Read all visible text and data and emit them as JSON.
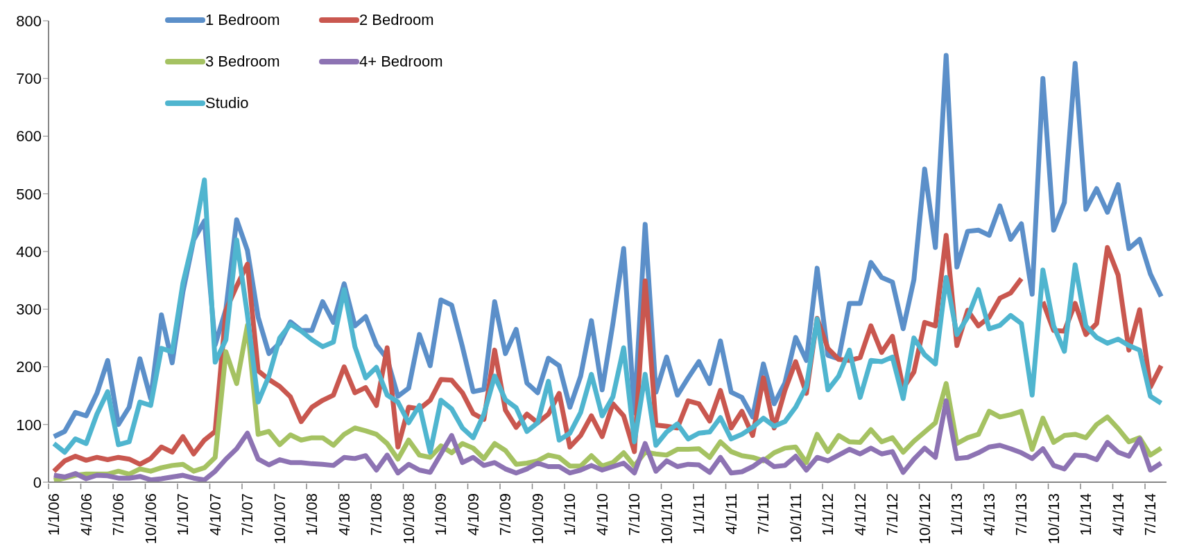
{
  "chart_data": {
    "type": "line",
    "categories": [
      "1/1/06",
      null,
      null,
      "4/1/06",
      null,
      null,
      "7/1/06",
      null,
      null,
      "10/1/06",
      null,
      null,
      "1/1/07",
      null,
      null,
      "4/1/07",
      null,
      null,
      "7/1/07",
      null,
      null,
      "10/1/07",
      null,
      null,
      "1/1/08",
      null,
      null,
      "4/1/08",
      null,
      null,
      "7/1/08",
      null,
      null,
      "10/1/08",
      null,
      null,
      "1/1/09",
      null,
      null,
      "4/1/09",
      null,
      null,
      "7/1/09",
      null,
      null,
      "10/1/09",
      null,
      null,
      "1/1/10",
      null,
      null,
      "4/1/10",
      null,
      null,
      "7/1/10",
      null,
      null,
      "10/1/10",
      null,
      null,
      "1/1/11",
      null,
      null,
      "4/1/11",
      null,
      null,
      "7/1/11",
      null,
      null,
      "10/1/11",
      null,
      null,
      "1/1/12",
      null,
      null,
      "4/1/12",
      null,
      null,
      "7/1/12",
      null,
      null,
      "10/1/12",
      null,
      null,
      "1/1/13",
      null,
      null,
      "4/1/13",
      null,
      null,
      "7/1/13",
      null,
      null,
      "10/1/13",
      null,
      null,
      "1/1/14",
      null,
      null,
      "4/1/14",
      null,
      null,
      "7/1/14",
      null
    ],
    "series": [
      {
        "name": "1 Bedroom",
        "color": "#5b8fc9",
        "values": [
          79,
          88,
          121,
          115,
          154,
          211,
          100,
          130,
          214,
          145,
          290,
          207,
          330,
          420,
          453,
          238,
          300,
          455,
          402,
          286,
          223,
          241,
          278,
          263,
          263,
          313,
          277,
          344,
          271,
          287,
          238,
          214,
          149,
          163,
          256,
          202,
          316,
          307,
          235,
          157,
          161,
          313,
          223,
          265,
          172,
          155,
          215,
          202,
          130,
          184,
          280,
          160,
          275,
          405,
          120,
          447,
          156,
          217,
          151,
          181,
          209,
          171,
          245,
          156,
          147,
          113,
          205,
          136,
          172,
          251,
          211,
          371,
          220,
          214,
          310,
          310,
          381,
          355,
          347,
          266,
          351,
          543,
          407,
          740,
          373,
          435,
          437,
          428,
          479,
          421,
          448,
          326,
          700,
          437,
          485,
          726,
          473,
          509,
          468,
          516,
          405,
          421,
          361,
          322
        ]
      },
      {
        "name": "2 Bedroom",
        "color": "#c9574f",
        "values": [
          19,
          37,
          45,
          38,
          43,
          39,
          43,
          40,
          31,
          41,
          61,
          52,
          79,
          49,
          73,
          88,
          298,
          340,
          378,
          193,
          178,
          166,
          148,
          105,
          130,
          142,
          151,
          200,
          155,
          164,
          133,
          233,
          61,
          130,
          127,
          142,
          178,
          177,
          155,
          119,
          109,
          229,
          125,
          95,
          118,
          103,
          118,
          154,
          61,
          81,
          115,
          79,
          136,
          115,
          53,
          349,
          99,
          97,
          94,
          141,
          136,
          106,
          159,
          94,
          123,
          81,
          181,
          94,
          159,
          209,
          154,
          284,
          232,
          213,
          211,
          216,
          271,
          225,
          253,
          163,
          191,
          277,
          271,
          428,
          237,
          298,
          271,
          286,
          319,
          328,
          353,
          null,
          313,
          263,
          262,
          310,
          256,
          275,
          407,
          359,
          229,
          299,
          165,
          202
        ]
      },
      {
        "name": "3 Bedroom",
        "color": "#a5c262",
        "values": [
          3,
          7,
          12,
          14,
          14,
          14,
          19,
          14,
          23,
          19,
          25,
          29,
          31,
          19,
          25,
          43,
          226,
          171,
          272,
          83,
          88,
          65,
          82,
          73,
          77,
          77,
          64,
          83,
          94,
          89,
          83,
          67,
          40,
          73,
          47,
          43,
          63,
          51,
          67,
          59,
          41,
          67,
          55,
          31,
          33,
          37,
          47,
          43,
          28,
          28,
          46,
          28,
          34,
          51,
          28,
          52,
          49,
          47,
          57,
          57,
          58,
          43,
          70,
          53,
          46,
          43,
          37,
          51,
          59,
          61,
          34,
          83,
          53,
          81,
          70,
          69,
          91,
          70,
          77,
          52,
          71,
          87,
          103,
          171,
          67,
          77,
          83,
          123,
          113,
          117,
          123,
          57,
          111,
          69,
          81,
          83,
          77,
          100,
          113,
          93,
          70,
          77,
          47,
          59
        ]
      },
      {
        "name": "4+ Bedroom",
        "color": "#8d73b3",
        "values": [
          12,
          9,
          15,
          6,
          12,
          11,
          7,
          7,
          10,
          4,
          6,
          9,
          12,
          7,
          4,
          19,
          40,
          58,
          85,
          40,
          30,
          39,
          34,
          34,
          32,
          31,
          29,
          43,
          41,
          46,
          21,
          47,
          16,
          31,
          21,
          17,
          49,
          81,
          34,
          43,
          29,
          34,
          23,
          16,
          23,
          33,
          27,
          27,
          16,
          21,
          29,
          21,
          27,
          33,
          16,
          67,
          19,
          37,
          27,
          31,
          30,
          17,
          43,
          16,
          18,
          27,
          40,
          27,
          29,
          45,
          21,
          43,
          37,
          47,
          57,
          49,
          59,
          49,
          53,
          17,
          40,
          59,
          43,
          141,
          41,
          43,
          51,
          61,
          64,
          58,
          51,
          41,
          58,
          29,
          23,
          47,
          46,
          39,
          69,
          52,
          45,
          75,
          21,
          33
        ]
      },
      {
        "name": "Studio",
        "color": "#4fb5cf",
        "values": [
          67,
          52,
          75,
          67,
          118,
          157,
          65,
          70,
          139,
          133,
          232,
          226,
          345,
          423,
          524,
          208,
          247,
          420,
          290,
          139,
          184,
          250,
          274,
          262,
          247,
          235,
          243,
          334,
          235,
          181,
          199,
          151,
          139,
          103,
          133,
          52,
          142,
          127,
          94,
          77,
          118,
          184,
          143,
          129,
          88,
          103,
          175,
          73,
          85,
          121,
          187,
          115,
          148,
          233,
          70,
          187,
          64,
          87,
          101,
          75,
          85,
          87,
          112,
          75,
          83,
          95,
          111,
          97,
          105,
          130,
          166,
          283,
          160,
          184,
          229,
          147,
          211,
          209,
          217,
          145,
          250,
          221,
          205,
          355,
          256,
          286,
          334,
          266,
          272,
          289,
          275,
          151,
          368,
          271,
          227,
          377,
          271,
          251,
          241,
          248,
          237,
          229,
          149,
          137
        ]
      }
    ],
    "ylim": [
      0,
      800
    ],
    "yticks": [
      0,
      100,
      200,
      300,
      400,
      500,
      600,
      700,
      800
    ],
    "grid": false,
    "legend": "top left"
  }
}
